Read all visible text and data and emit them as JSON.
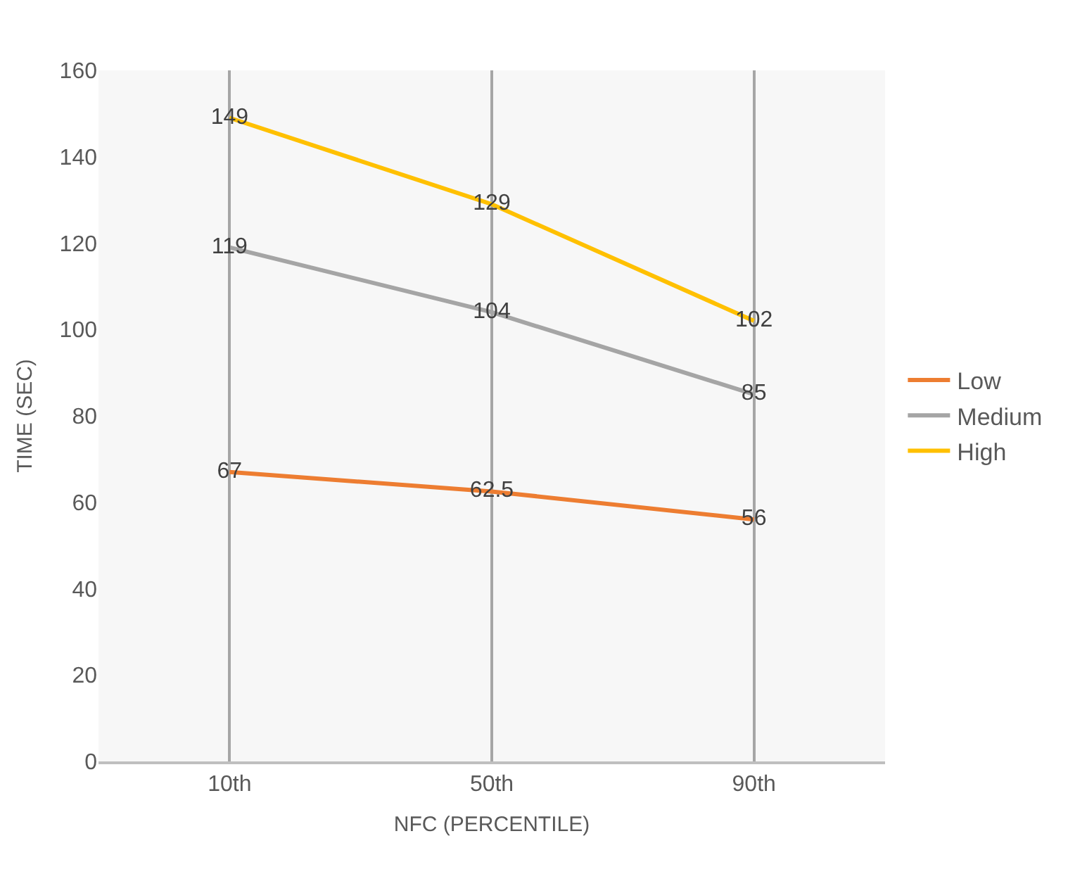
{
  "chart_data": {
    "type": "line",
    "xlabel": "NFC (PERCENTILE)",
    "ylabel": "TIME (SEC)",
    "categories": [
      "10th",
      "50th",
      "90th"
    ],
    "series": [
      {
        "name": "Low",
        "color": "#ed7d31",
        "values": [
          67,
          62.5,
          56
        ]
      },
      {
        "name": "Medium",
        "color": "#a5a5a5",
        "values": [
          119,
          104,
          85
        ]
      },
      {
        "name": "High",
        "color": "#ffc000",
        "values": [
          149,
          129,
          102
        ]
      }
    ],
    "ylim": [
      0,
      160
    ],
    "yticks": [
      0,
      20,
      40,
      60,
      80,
      100,
      120,
      140,
      160
    ],
    "grid": "x",
    "legend": "right",
    "data_labels": true,
    "marker": "none",
    "line_style": "solid"
  }
}
